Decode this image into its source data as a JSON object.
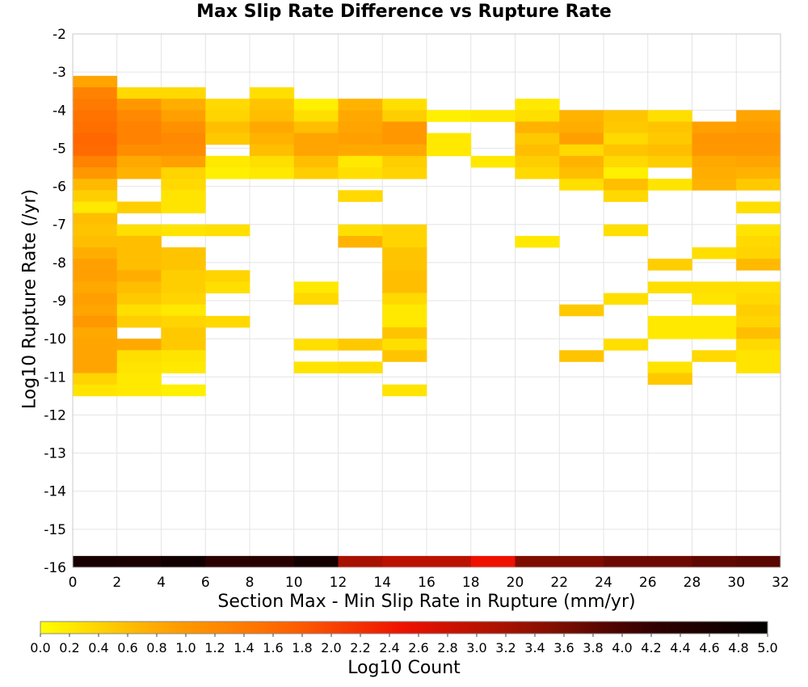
{
  "chart_data": {
    "type": "heatmap",
    "title": "Max Slip Rate Difference vs Rupture Rate",
    "xlabel": "Section Max - Min Slip Rate in Rupture (mm/yr)",
    "ylabel": "Log10 Rupture Rate (/yr)",
    "colorbar_label": "Log10 Count",
    "xlim": [
      0,
      32
    ],
    "ylim": [
      -16,
      -2
    ],
    "x_ticks": [
      "0",
      "2",
      "4",
      "6",
      "8",
      "10",
      "12",
      "14",
      "16",
      "18",
      "20",
      "22",
      "24",
      "26",
      "28",
      "30",
      "32"
    ],
    "y_ticks": [
      "-2",
      "-3",
      "-4",
      "-5",
      "-6",
      "-7",
      "-8",
      "-9",
      "-10",
      "-11",
      "-12",
      "-13",
      "-14",
      "-15",
      "-16"
    ],
    "colorbar_ticks": [
      "0.0",
      "0.2",
      "0.4",
      "0.6",
      "0.8",
      "1.0",
      "1.2",
      "1.4",
      "1.6",
      "1.8",
      "2.0",
      "2.2",
      "2.4",
      "2.6",
      "2.8",
      "3.0",
      "3.2",
      "3.4",
      "3.6",
      "3.8",
      "4.0",
      "4.2",
      "4.4",
      "4.6",
      "4.8",
      "5.0"
    ],
    "colorbar_range": [
      0,
      5
    ],
    "colorscale": [
      "#ffff00",
      "#ffa500",
      "#ff6600",
      "#ee1100",
      "#991100",
      "#330000",
      "#000000"
    ],
    "grid": true,
    "colorbar_position": "bottom",
    "x_bin_width": 2,
    "y_bin_height": 0.3,
    "bins": {
      "0": {
        "-3.4": 0.85,
        "-3.7": 1.3,
        "-4.0": 1.4,
        "-4.3": 1.5,
        "-4.6": 1.55,
        "-4.9": 1.65,
        "-5.2": 1.6,
        "-5.5": 1.3,
        "-5.8": 1.0,
        "-6.1": 0.65,
        "-6.4": 0.45,
        "-6.7": 0.2,
        "-7.0": 0.6,
        "-7.3": 0.55,
        "-7.6": 0.6,
        "-7.9": 0.75,
        "-8.2": 0.9,
        "-8.5": 0.9,
        "-8.8": 0.8,
        "-9.1": 0.9,
        "-9.4": 0.85,
        "-9.7": 1.0,
        "-10.0": 0.8,
        "-10.3": 0.85,
        "-10.6": 0.85,
        "-10.9": 0.85,
        "-11.2": 0.4,
        "-11.5": 0.25,
        "-16.0": 4.6
      },
      "2": {
        "-3.7": 0.35,
        "-4.0": 1.0,
        "-4.3": 1.2,
        "-4.6": 1.3,
        "-4.9": 1.3,
        "-5.2": 1.15,
        "-5.5": 0.8,
        "-5.8": 0.7,
        "-6.7": 0.45,
        "-7.3": 0.3,
        "-7.6": 0.6,
        "-7.9": 0.6,
        "-8.2": 0.6,
        "-8.5": 0.75,
        "-8.8": 0.6,
        "-9.1": 0.5,
        "-9.4": 0.3,
        "-9.7": 0.45,
        "-10.3": 0.8,
        "-10.6": 0.3,
        "-10.9": 0.25,
        "-11.2": 0.2,
        "-11.5": 0.2,
        "-16.0": 4.55
      },
      "4": {
        "-3.7": 0.35,
        "-4.0": 0.75,
        "-4.3": 0.9,
        "-4.6": 1.1,
        "-4.9": 1.2,
        "-5.2": 1.15,
        "-5.5": 0.9,
        "-5.8": 0.4,
        "-6.1": 0.35,
        "-6.4": 0.25,
        "-6.7": 0.25,
        "-7.3": 0.25,
        "-7.9": 0.55,
        "-8.2": 0.55,
        "-8.5": 0.45,
        "-8.8": 0.45,
        "-9.1": 0.4,
        "-9.4": 0.2,
        "-9.7": 0.4,
        "-10.0": 0.5,
        "-10.3": 0.5,
        "-10.6": 0.25,
        "-10.9": 0.2,
        "-11.5": 0.15,
        "-16.0": 4.7
      },
      "6": {
        "-4.0": 0.35,
        "-4.3": 0.4,
        "-4.6": 0.6,
        "-4.9": 0.5,
        "-5.5": 0.2,
        "-5.8": 0.15,
        "-7.3": 0.3,
        "-8.5": 0.4,
        "-8.8": 0.3,
        "-9.7": 0.35,
        "-16.0": 4.3
      },
      "8": {
        "-3.7": 0.3,
        "-4.0": 0.55,
        "-4.3": 0.6,
        "-4.6": 0.8,
        "-4.9": 0.7,
        "-5.2": 0.6,
        "-5.5": 0.3,
        "-5.8": 0.2,
        "-16.0": 4.35
      },
      "10": {
        "-4.0": 0.15,
        "-4.3": 0.3,
        "-4.6": 0.6,
        "-4.9": 0.85,
        "-5.2": 0.85,
        "-5.5": 0.6,
        "-5.8": 0.45,
        "-8.8": 0.2,
        "-9.1": 0.35,
        "-10.3": 0.3,
        "-10.9": 0.25,
        "-16.0": 4.65
      },
      "12": {
        "-4.0": 0.7,
        "-4.3": 0.8,
        "-4.6": 0.85,
        "-4.9": 0.9,
        "-5.2": 0.8,
        "-5.5": 0.2,
        "-5.8": 0.3,
        "-6.4": 0.35,
        "-7.3": 0.3,
        "-7.6": 0.7,
        "-10.3": 0.5,
        "-10.9": 0.3,
        "-16.0": 3.2
      },
      "14": {
        "-4.0": 0.3,
        "-4.3": 0.45,
        "-4.6": 1.0,
        "-4.9": 1.0,
        "-5.2": 0.8,
        "-5.5": 0.45,
        "-5.8": 0.4,
        "-7.3": 0.4,
        "-7.6": 0.4,
        "-7.9": 0.55,
        "-8.2": 0.55,
        "-8.5": 0.6,
        "-8.8": 0.6,
        "-9.1": 0.35,
        "-9.4": 0.2,
        "-9.7": 0.2,
        "-10.0": 0.55,
        "-10.3": 0.3,
        "-10.6": 0.55,
        "-11.5": 0.25,
        "-16.0": 3.0
      },
      "16": {
        "-4.3": 0.15,
        "-4.9": 0.2,
        "-5.2": 0.2,
        "-16.0": 3.0
      },
      "18": {
        "-4.3": 0.2,
        "-5.5": 0.2,
        "-16.0": 2.5
      },
      "20": {
        "-4.0": 0.2,
        "-4.3": 0.3,
        "-4.6": 0.7,
        "-4.9": 0.5,
        "-5.2": 0.6,
        "-5.5": 0.45,
        "-5.8": 0.35,
        "-7.6": 0.2,
        "-16.0": 3.55
      },
      "22": {
        "-4.3": 0.7,
        "-4.6": 0.75,
        "-4.9": 0.9,
        "-5.2": 0.35,
        "-5.5": 0.7,
        "-5.8": 0.6,
        "-6.1": 0.3,
        "-9.4": 0.5,
        "-10.6": 0.55,
        "-16.0": 3.55
      },
      "24": {
        "-4.3": 0.55,
        "-4.6": 0.5,
        "-4.9": 0.35,
        "-5.2": 0.55,
        "-5.5": 0.35,
        "-5.8": 0.15,
        "-6.1": 0.6,
        "-6.4": 0.35,
        "-7.3": 0.3,
        "-9.1": 0.3,
        "-10.3": 0.3,
        "-16.0": 3.7
      },
      "26": {
        "-4.3": 0.3,
        "-4.6": 0.55,
        "-4.9": 0.5,
        "-5.2": 0.6,
        "-5.5": 0.45,
        "-6.1": 0.25,
        "-8.2": 0.45,
        "-8.8": 0.3,
        "-9.7": 0.2,
        "-10.0": 0.2,
        "-10.9": 0.25,
        "-11.2": 0.5,
        "-16.0": 3.7
      },
      "28": {
        "-4.6": 0.9,
        "-4.9": 1.05,
        "-5.2": 1.0,
        "-5.5": 0.8,
        "-5.8": 0.75,
        "-6.1": 0.7,
        "-7.9": 0.3,
        "-8.8": 0.3,
        "-9.1": 0.25,
        "-9.7": 0.2,
        "-10.0": 0.2,
        "-10.6": 0.35,
        "-16.0": 3.8
      },
      "30": {
        "-4.3": 0.85,
        "-4.6": 0.95,
        "-4.9": 1.05,
        "-5.2": 1.0,
        "-5.5": 0.85,
        "-5.8": 0.7,
        "-6.1": 0.5,
        "-6.7": 0.3,
        "-7.3": 0.25,
        "-7.6": 0.35,
        "-7.9": 0.4,
        "-8.2": 0.65,
        "-8.8": 0.3,
        "-9.1": 0.35,
        "-9.4": 0.45,
        "-9.7": 0.4,
        "-10.0": 0.6,
        "-10.3": 0.35,
        "-10.6": 0.25,
        "-10.9": 0.25,
        "-16.0": 3.85
      }
    }
  }
}
